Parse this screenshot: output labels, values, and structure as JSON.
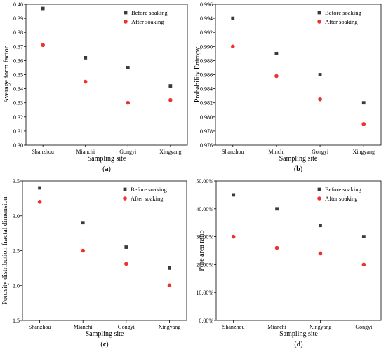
{
  "chart_data": [
    {
      "panel": "a",
      "type": "scatter",
      "categories": [
        "Shanzhou",
        "Mianchi",
        "Gongyi",
        "Xingyang"
      ],
      "series": [
        {
          "name": "Before soaking",
          "values": [
            0.397,
            0.362,
            0.355,
            0.342
          ],
          "color": "#3a3a3a",
          "marker": "square"
        },
        {
          "name": "After soaking",
          "values": [
            0.371,
            0.345,
            0.33,
            0.332
          ],
          "color": "#ee3232",
          "marker": "circle"
        }
      ],
      "xlabel": "Sampling site",
      "ylabel": "Average form factor",
      "ylim": [
        0.3,
        0.4
      ],
      "yticks": [
        "0.30",
        "0.31",
        "0.32",
        "0.33",
        "0.34",
        "0.35",
        "0.36",
        "0.37",
        "0.38",
        "0.39",
        "0.40"
      ],
      "legend_position": "top-right",
      "grid": false
    },
    {
      "panel": "b",
      "type": "scatter",
      "categories": [
        "Shanzhou",
        "Minchi",
        "Gongyi",
        "Xingyang"
      ],
      "series": [
        {
          "name": "Before soaking",
          "values": [
            0.994,
            0.989,
            0.986,
            0.982
          ],
          "color": "#3a3a3a",
          "marker": "square"
        },
        {
          "name": "After soaking",
          "values": [
            0.99,
            0.9858,
            0.9825,
            0.979
          ],
          "color": "#ee3232",
          "marker": "circle"
        }
      ],
      "xlabel": "Sampling site",
      "ylabel": "Probability Entropy",
      "ylim": [
        0.976,
        0.996
      ],
      "yticks": [
        "0.976",
        "0.978",
        "0.980",
        "0.982",
        "0.984",
        "0.986",
        "0.988",
        "0.990",
        "0.992",
        "0.994",
        "0.996"
      ],
      "legend_position": "top-right",
      "grid": false
    },
    {
      "panel": "c",
      "type": "scatter",
      "categories": [
        "Shanzhou",
        "Mianchi",
        "Gongyi",
        "Xingyang"
      ],
      "series": [
        {
          "name": "Before soaking",
          "values": [
            3.4,
            2.9,
            2.55,
            2.25
          ],
          "color": "#3a3a3a",
          "marker": "square"
        },
        {
          "name": "After soaking",
          "values": [
            3.2,
            2.5,
            2.31,
            2.0
          ],
          "color": "#ee3232",
          "marker": "circle"
        }
      ],
      "xlabel": "Sampling site",
      "ylabel": "Porosity distribution fractal dimension",
      "ylim": [
        1.5,
        3.5
      ],
      "yticks": [
        "1.5",
        "2.0",
        "2.5",
        "3.0",
        "3.5"
      ],
      "legend_position": "top-right",
      "grid": false
    },
    {
      "panel": "d",
      "type": "scatter",
      "categories": [
        "Shanzhou",
        "Mianchi",
        "Xingyang",
        "Gongyi"
      ],
      "series": [
        {
          "name": "Before soaking",
          "values": [
            45,
            40,
            34,
            30
          ],
          "color": "#3a3a3a",
          "marker": "square"
        },
        {
          "name": "After soaking",
          "values": [
            30,
            26,
            24,
            20
          ],
          "color": "#ee3232",
          "marker": "circle"
        }
      ],
      "xlabel": "Sampling site",
      "ylabel": "Pore area ratio",
      "ylim": [
        0,
        50
      ],
      "yticks": [
        "0.00%",
        "10.00%",
        "20.00%",
        "30.00%",
        "40.00%",
        "50.00%"
      ],
      "legend_position": "top-right",
      "grid": false
    }
  ]
}
